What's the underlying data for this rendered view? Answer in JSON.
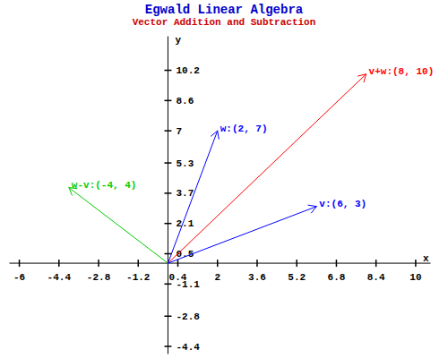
{
  "chart_data": {
    "type": "vector",
    "title": "Egwald Linear Algebra",
    "subtitle": "Vector Addition and Subtraction",
    "xlabel": "x",
    "ylabel": "y",
    "xlim": [
      -6.4,
      10.6
    ],
    "ylim": [
      -4.8,
      12
    ],
    "xticks": [
      -6,
      -4.4,
      -2.8,
      -1.2,
      0.4,
      2,
      3.6,
      5.2,
      6.8,
      8.4,
      10
    ],
    "yticks": [
      -4.4,
      -2.8,
      -1.1,
      0.5,
      2.1,
      3.7,
      5.3,
      7,
      8.6,
      10.2
    ],
    "grid": false,
    "series": [
      {
        "name": "v+w",
        "label": "v+w:(8, 10)",
        "color": "red",
        "x": [
          0,
          8
        ],
        "values": [
          0,
          10
        ]
      },
      {
        "name": "w-v",
        "label": "w-v:(-4, 4)",
        "color": "#00cc00",
        "x": [
          0,
          -4
        ],
        "values": [
          0,
          4
        ]
      },
      {
        "name": "w",
        "label": "w:(2, 7)",
        "color": "blue",
        "x": [
          0,
          2
        ],
        "values": [
          0,
          7
        ]
      },
      {
        "name": "v",
        "label": "v:(6, 3)",
        "color": "blue",
        "x": [
          0,
          6
        ],
        "values": [
          0,
          3
        ]
      }
    ]
  }
}
